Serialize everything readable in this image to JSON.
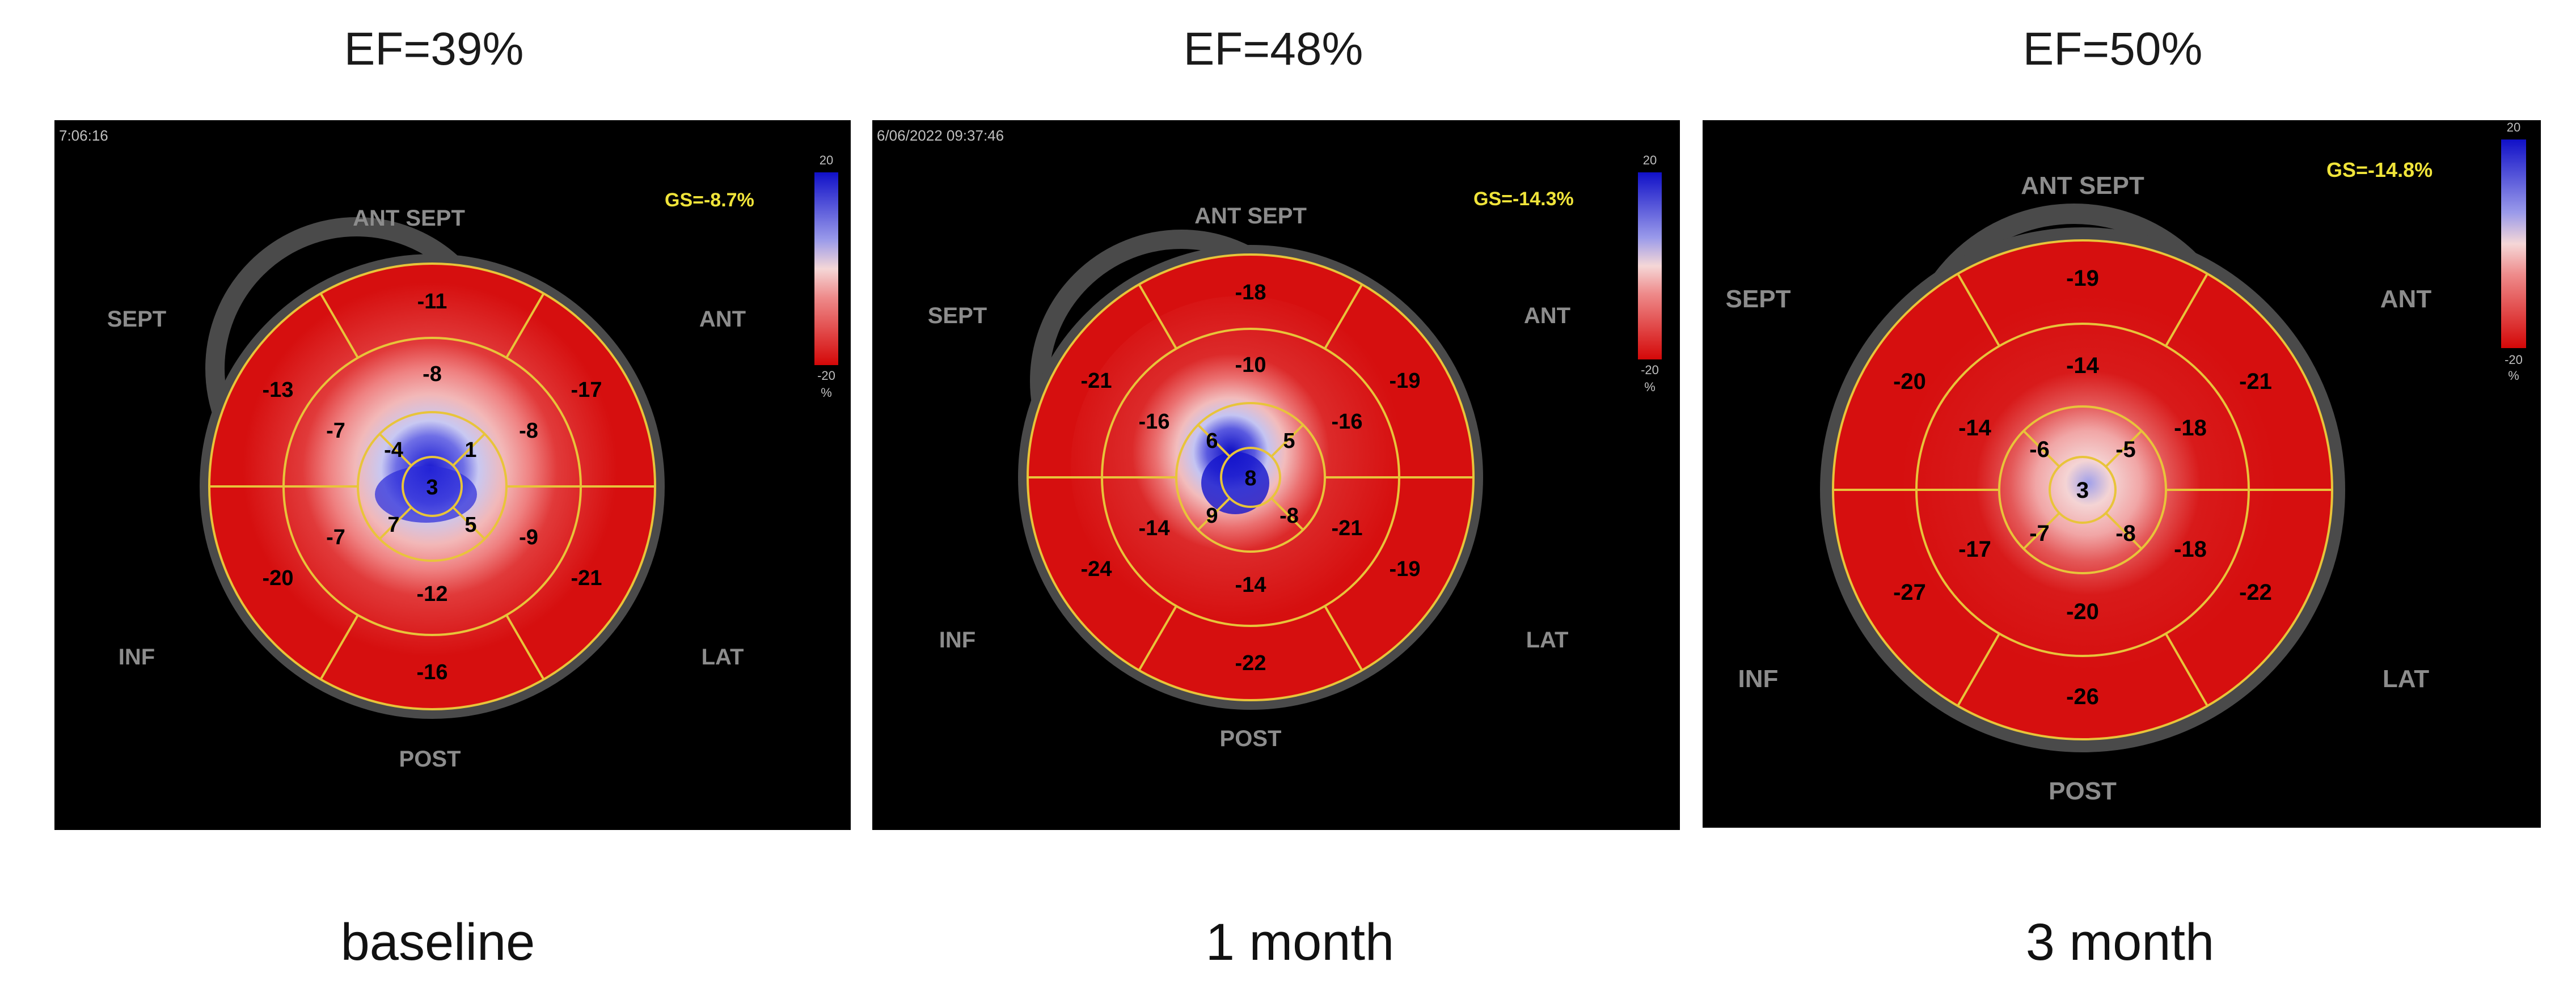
{
  "panels": [
    {
      "ef": "EF=39%",
      "caption": "baseline",
      "timestamp": "7:06:16",
      "gs": "GS=-8.7%",
      "scale": {
        "top": "20",
        "bottom": "-20",
        "unit": "%"
      },
      "orientation": {
        "top": "ANT SEPT",
        "top_left": "SEPT",
        "top_right": "ANT",
        "bottom_left": "INF",
        "bottom_right": "LAT",
        "bottom": "POST"
      },
      "segments": {
        "basal": [
          "-11",
          "-17",
          "-21",
          "-16",
          "-20",
          "-13"
        ],
        "mid": [
          "-8",
          "-8",
          "-9",
          "-12",
          "-7",
          "-7"
        ],
        "apical": [
          "1",
          "5",
          "7",
          "-4"
        ],
        "apex": "3"
      }
    },
    {
      "ef": "EF=48%",
      "caption": "1 month",
      "timestamp": "6/06/2022 09:37:46",
      "gs": "GS=-14.3%",
      "scale": {
        "top": "20",
        "bottom": "-20",
        "unit": "%"
      },
      "orientation": {
        "top": "ANT SEPT",
        "top_left": "SEPT",
        "top_right": "ANT",
        "bottom_left": "INF",
        "bottom_right": "LAT",
        "bottom": "POST"
      },
      "segments": {
        "basal": [
          "-18",
          "-19",
          "-19",
          "-22",
          "-24",
          "-21"
        ],
        "mid": [
          "-10",
          "-16",
          "-21",
          "-14",
          "-14",
          "-16"
        ],
        "apical": [
          "5",
          "-8",
          "9",
          "6"
        ],
        "apex": "8"
      }
    },
    {
      "ef": "EF=50%",
      "caption": "3 month",
      "timestamp": "",
      "gs": "GS=-14.8%",
      "scale": {
        "top": "20",
        "bottom": "-20",
        "unit": "%"
      },
      "orientation": {
        "top": "ANT SEPT",
        "top_left": "SEPT",
        "top_right": "ANT",
        "bottom_left": "INF",
        "bottom_right": "LAT",
        "bottom": "POST"
      },
      "segments": {
        "basal": [
          "-19",
          "-21",
          "-22",
          "-26",
          "-27",
          "-20"
        ],
        "mid": [
          "-14",
          "-18",
          "-18",
          "-20",
          "-17",
          "-14"
        ],
        "apical": [
          "-5",
          "-8",
          "-7",
          "-6"
        ],
        "apex": "3"
      }
    }
  ]
}
